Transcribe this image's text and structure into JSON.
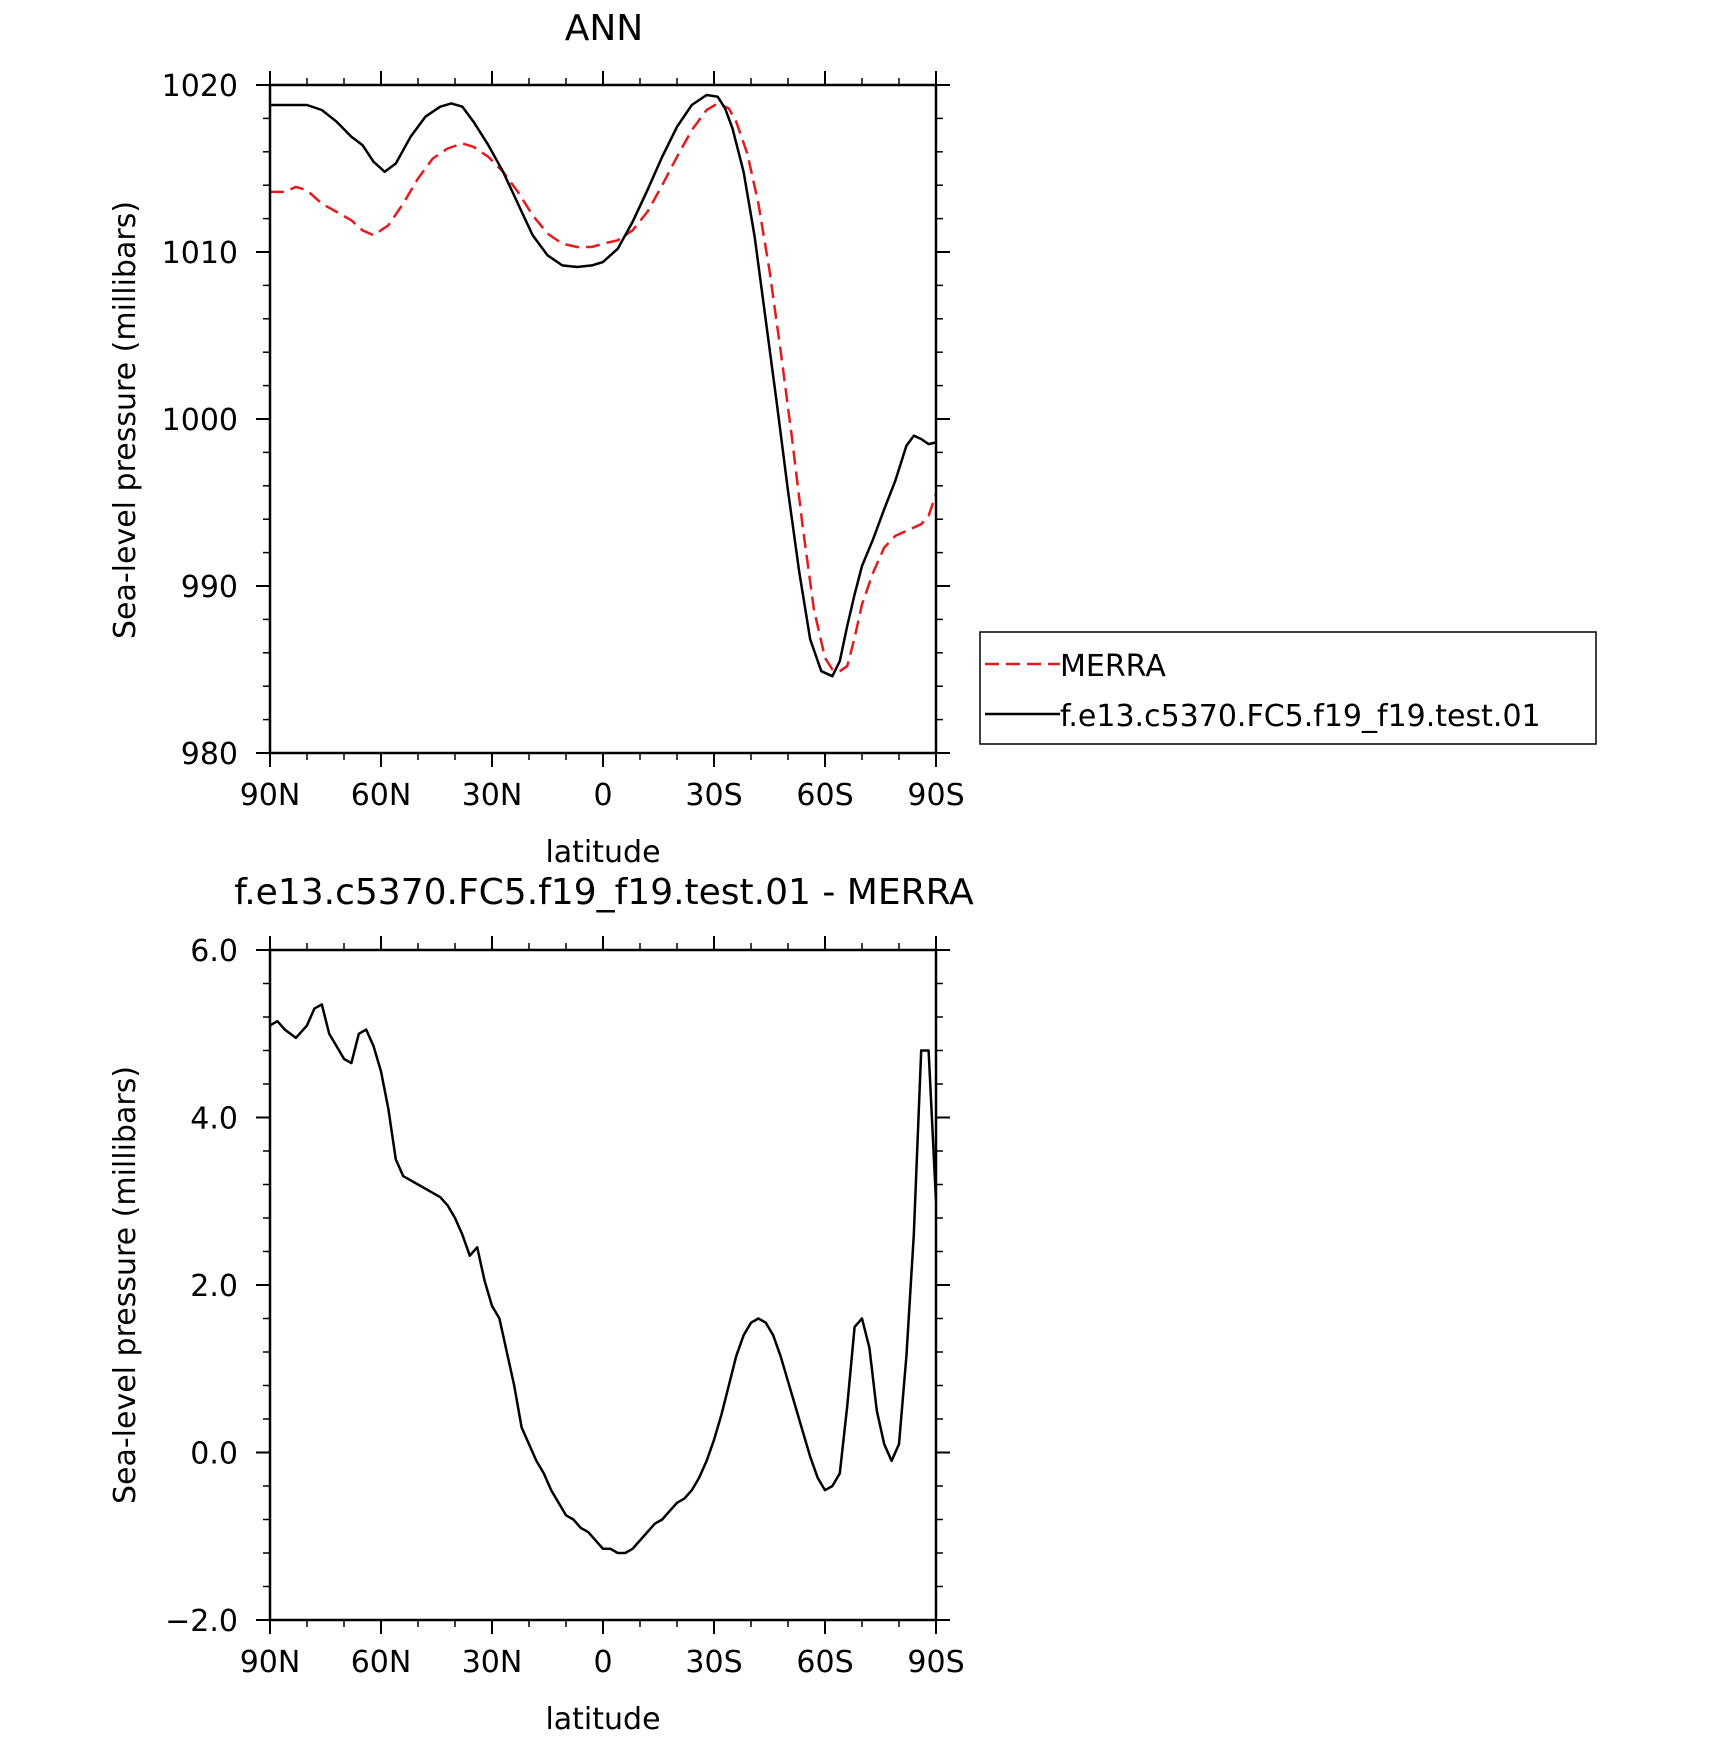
{
  "chart_data": [
    {
      "type": "line",
      "title": "ANN",
      "xlabel": "latitude",
      "ylabel": "Sea-level pressure (millibars)",
      "xlim": [
        90,
        -90
      ],
      "ylim": [
        980,
        1020
      ],
      "x_ticks": [
        {
          "value": 90,
          "label": "90N"
        },
        {
          "value": 60,
          "label": "60N"
        },
        {
          "value": 30,
          "label": "30N"
        },
        {
          "value": 0,
          "label": "0"
        },
        {
          "value": -30,
          "label": "30S"
        },
        {
          "value": -60,
          "label": "60S"
        },
        {
          "value": -90,
          "label": "90S"
        }
      ],
      "y_ticks": [
        {
          "value": 1020,
          "label": "1020"
        },
        {
          "value": 1010,
          "label": "1010"
        },
        {
          "value": 1000,
          "label": "1000"
        },
        {
          "value": 990,
          "label": "990"
        },
        {
          "value": 980,
          "label": "980"
        }
      ],
      "grid": false,
      "legend": {
        "placement": "right"
      },
      "series": [
        {
          "name": "MERRA",
          "color": "#e41a1c",
          "dash": "dashed",
          "x": [
            90,
            86,
            83,
            80,
            76,
            72,
            68,
            65,
            62,
            58,
            54,
            50,
            46,
            42,
            38,
            35,
            31,
            27,
            23,
            19,
            15,
            11,
            7,
            3,
            0,
            -4,
            -8,
            -12,
            -16,
            -20,
            -24,
            -28,
            -31,
            -34,
            -36,
            -39,
            -42,
            -45,
            -48,
            -51,
            -54,
            -57,
            -60,
            -62,
            -64,
            -66,
            -68,
            -70,
            -73,
            -76,
            -79,
            -82,
            -84,
            -86,
            -88,
            -90
          ],
          "y": [
            1013.6,
            1013.6,
            1013.9,
            1013.7,
            1012.9,
            1012.4,
            1011.9,
            1011.3,
            1011.0,
            1011.6,
            1012.9,
            1014.4,
            1015.6,
            1016.2,
            1016.5,
            1016.3,
            1015.7,
            1014.8,
            1013.6,
            1012.2,
            1011.1,
            1010.5,
            1010.3,
            1010.3,
            1010.5,
            1010.7,
            1011.3,
            1012.4,
            1014.0,
            1015.7,
            1017.3,
            1018.5,
            1018.9,
            1018.6,
            1017.8,
            1015.9,
            1012.9,
            1008.9,
            1004.1,
            999.0,
            993.5,
            988.6,
            985.7,
            985.0,
            984.9,
            985.2,
            986.9,
            988.9,
            990.8,
            992.3,
            993.0,
            993.3,
            993.5,
            993.7,
            994.2,
            995.5
          ]
        },
        {
          "name": "f.e13.c5370.FC5.f19_f19.test.01",
          "color": "#000000",
          "dash": "solid",
          "x": [
            90,
            86,
            83,
            80,
            76,
            72,
            68,
            65,
            62,
            59,
            56,
            52,
            48,
            44,
            41,
            38,
            35,
            31,
            27,
            23,
            19,
            15,
            11,
            7,
            3,
            0,
            -4,
            -8,
            -12,
            -16,
            -20,
            -24,
            -28,
            -31,
            -33,
            -35,
            -38,
            -41,
            -44,
            -47,
            -50,
            -53,
            -56,
            -59,
            -62,
            -64,
            -66,
            -68,
            -70,
            -73,
            -76,
            -79,
            -82,
            -84,
            -86,
            -88,
            -90
          ],
          "y": [
            1018.8,
            1018.8,
            1018.8,
            1018.8,
            1018.5,
            1017.8,
            1016.9,
            1016.4,
            1015.4,
            1014.8,
            1015.3,
            1016.9,
            1018.1,
            1018.7,
            1018.9,
            1018.7,
            1017.8,
            1016.4,
            1014.8,
            1012.9,
            1011.0,
            1009.8,
            1009.2,
            1009.1,
            1009.2,
            1009.4,
            1010.2,
            1011.8,
            1013.7,
            1015.7,
            1017.5,
            1018.8,
            1019.4,
            1019.3,
            1018.6,
            1017.4,
            1014.8,
            1010.9,
            1005.9,
            1000.9,
            995.7,
            990.9,
            986.8,
            984.9,
            984.6,
            985.5,
            987.6,
            989.5,
            991.2,
            992.8,
            994.6,
            996.3,
            998.4,
            999.0,
            998.8,
            998.5,
            998.6
          ]
        }
      ]
    },
    {
      "type": "line",
      "title": "f.e13.c5370.FC5.f19_f19.test.01 - MERRA",
      "xlabel": "latitude",
      "ylabel": "Sea-level pressure (millibars)",
      "xlim": [
        90,
        -90
      ],
      "ylim": [
        -2.0,
        6.0
      ],
      "x_ticks": [
        {
          "value": 90,
          "label": "90N"
        },
        {
          "value": 60,
          "label": "60N"
        },
        {
          "value": 30,
          "label": "30N"
        },
        {
          "value": 0,
          "label": "0"
        },
        {
          "value": -30,
          "label": "30S"
        },
        {
          "value": -60,
          "label": "60S"
        },
        {
          "value": -90,
          "label": "90S"
        }
      ],
      "y_ticks": [
        {
          "value": 6.0,
          "label": "6.0"
        },
        {
          "value": 4.0,
          "label": "4.0"
        },
        {
          "value": 2.0,
          "label": "2.0"
        },
        {
          "value": 0.0,
          "label": "0.0"
        },
        {
          "value": -2.0,
          "label": "−2.0"
        }
      ],
      "grid": false,
      "series": [
        {
          "color": "#000000",
          "dash": "solid",
          "x": [
            90,
            88,
            86,
            83,
            80,
            78,
            76,
            74,
            72,
            70,
            68,
            66,
            64,
            62,
            60,
            58,
            56,
            54,
            52,
            50,
            48,
            46,
            44,
            42,
            40,
            38,
            36,
            34,
            32,
            30,
            28,
            26,
            24,
            22,
            20,
            18,
            16,
            14,
            12,
            10,
            8,
            6,
            4,
            2,
            0,
            -2,
            -4,
            -6,
            -8,
            -10,
            -12,
            -14,
            -16,
            -18,
            -20,
            -22,
            -24,
            -26,
            -28,
            -30,
            -32,
            -34,
            -36,
            -38,
            -40,
            -42,
            -44,
            -46,
            -48,
            -50,
            -52,
            -54,
            -56,
            -58,
            -60,
            -62,
            -64,
            -66,
            -68,
            -70,
            -72,
            -74,
            -76,
            -78,
            -80,
            -82,
            -84,
            -86,
            -88,
            -90
          ],
          "y": [
            5.1,
            5.15,
            5.05,
            4.95,
            5.1,
            5.3,
            5.35,
            5.0,
            4.85,
            4.7,
            4.65,
            5.0,
            5.05,
            4.85,
            4.55,
            4.1,
            3.5,
            3.3,
            3.25,
            3.2,
            3.15,
            3.1,
            3.05,
            2.95,
            2.8,
            2.6,
            2.35,
            2.45,
            2.05,
            1.75,
            1.6,
            1.2,
            0.8,
            0.3,
            0.1,
            -0.1,
            -0.25,
            -0.45,
            -0.6,
            -0.75,
            -0.8,
            -0.9,
            -0.95,
            -1.05,
            -1.15,
            -1.15,
            -1.2,
            -1.2,
            -1.15,
            -1.05,
            -0.95,
            -0.85,
            -0.8,
            -0.7,
            -0.6,
            -0.55,
            -0.45,
            -0.3,
            -0.1,
            0.15,
            0.45,
            0.8,
            1.15,
            1.4,
            1.55,
            1.6,
            1.55,
            1.4,
            1.15,
            0.85,
            0.55,
            0.25,
            -0.05,
            -0.3,
            -0.45,
            -0.4,
            -0.25,
            0.55,
            1.5,
            1.6,
            1.25,
            0.5,
            0.1,
            -0.1,
            0.1,
            1.15,
            2.6,
            4.8,
            4.8,
            3.0
          ]
        }
      ]
    }
  ]
}
